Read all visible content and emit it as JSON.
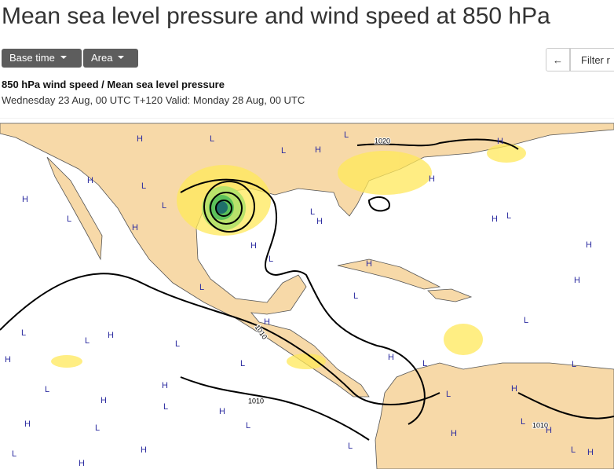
{
  "header": {
    "title": "Mean sea level pressure and wind speed at 850 hPa"
  },
  "toolbar": {
    "buttons": [
      "Base time",
      "Area"
    ],
    "back": "←",
    "filter": "Filter r"
  },
  "product": {
    "name": "850 hPa wind speed / Mean sea level pressure",
    "validity": "Wednesday 23 Aug, 00 UTC T+120 Valid: Monday 28 Aug, 00 UTC"
  },
  "map": {
    "pressure_centers": [
      "L",
      "L",
      "H",
      "L",
      "H",
      "H",
      "L",
      "H",
      "L",
      "H",
      "L",
      "L",
      "H",
      "H",
      "L",
      "H",
      "L",
      "H",
      "H",
      "H",
      "L",
      "H",
      "H",
      "L",
      "L",
      "L",
      "H",
      "L",
      "H",
      "L",
      "H",
      "L",
      "L",
      "L",
      "H",
      "L",
      "H",
      "H",
      "L",
      "H",
      "L",
      "H",
      "L",
      "H",
      "L",
      "H",
      "L",
      "H",
      "L",
      "H",
      "H",
      "L",
      "L",
      "H"
    ],
    "contour_labels": [
      "1020",
      "1010",
      "1010",
      "1010"
    ]
  }
}
